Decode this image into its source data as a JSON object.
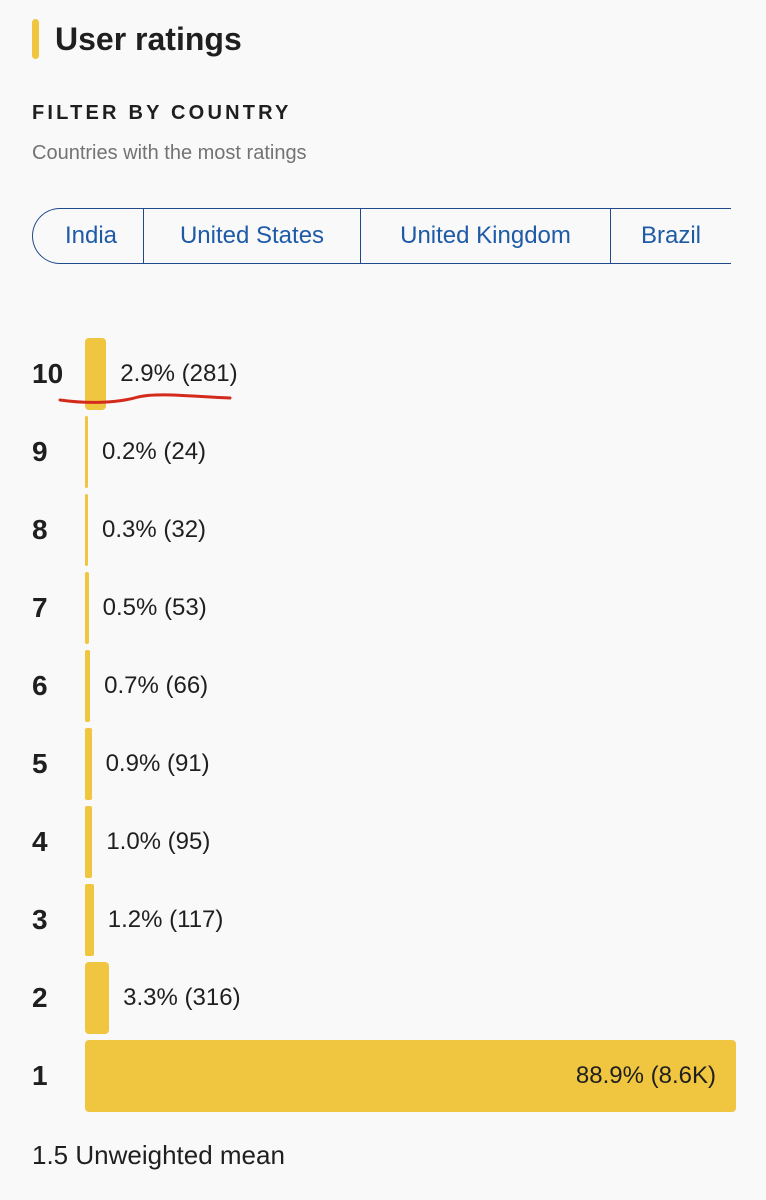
{
  "header": {
    "title": "User ratings"
  },
  "filter": {
    "label": "FILTER BY COUNTRY",
    "subtitle": "Countries with the most ratings",
    "countries": [
      "India",
      "United States",
      "United Kingdom",
      "Brazil"
    ]
  },
  "colors": {
    "accent": "#f0c53f",
    "chip_border": "#1e4a8c",
    "chip_text": "#1e5aa6",
    "annotation": "#d42a1c"
  },
  "chart_data": {
    "type": "bar",
    "orientation": "horizontal",
    "categories": [
      "10",
      "9",
      "8",
      "7",
      "6",
      "5",
      "4",
      "3",
      "2",
      "1"
    ],
    "values": [
      2.9,
      0.2,
      0.3,
      0.5,
      0.7,
      0.9,
      1.0,
      1.2,
      3.3,
      88.9
    ],
    "counts": [
      "281",
      "24",
      "32",
      "53",
      "66",
      "91",
      "95",
      "117",
      "316",
      "8.6K"
    ],
    "data_labels": [
      "2.9% (281)",
      "0.2% (24)",
      "0.3% (32)",
      "0.5% (53)",
      "0.7% (66)",
      "0.9% (91)",
      "1.0% (95)",
      "1.2% (117)",
      "3.3% (316)",
      "88.9% (8.6K)"
    ],
    "unit": "%",
    "xlim": [
      0,
      88.9
    ]
  },
  "summary": {
    "mean_text": "1.5 Unweighted mean"
  }
}
